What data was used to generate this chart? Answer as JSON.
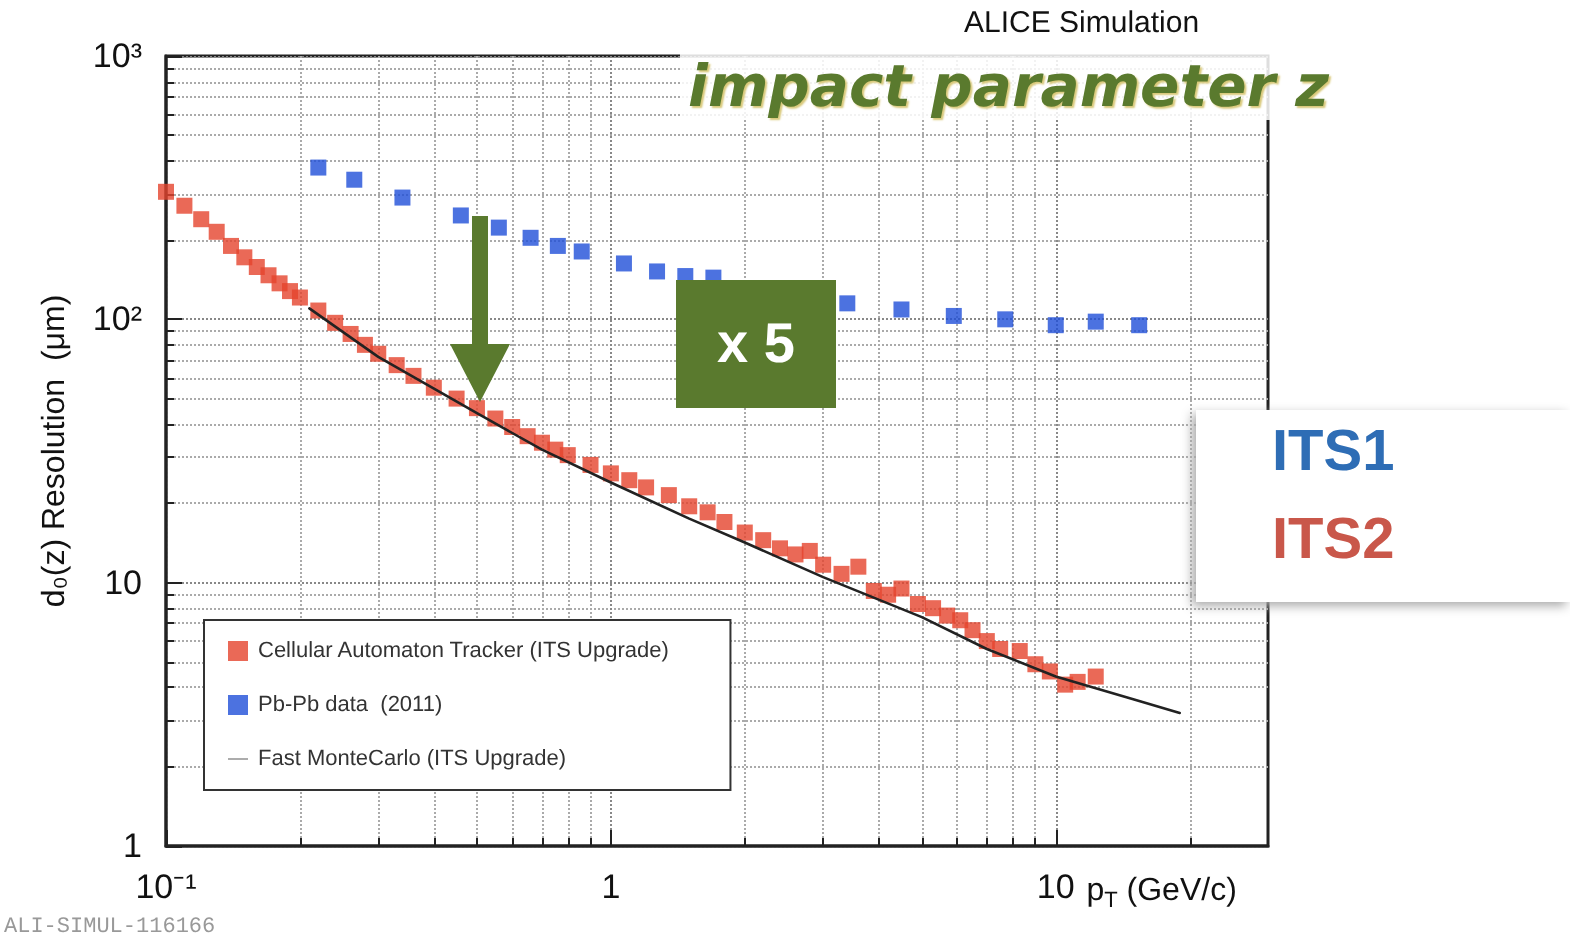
{
  "chart_data": {
    "type": "scatter",
    "title": "impact parameter z",
    "xlabel": "p$_{T}$ (GeV/c)",
    "ylabel": "d₀(z) Resolution  (μm)",
    "annotations": [
      "ALICE Simulation",
      "x 5",
      "ITS1",
      "ITS2",
      "ALI-SIMUL-116166"
    ],
    "log": "xy",
    "grid": true,
    "legend": "bottom left",
    "marker": "square",
    "xlim": [
      0.1,
      30
    ],
    "xticks": [
      {
        "value": 0.1,
        "label": "10⁻¹"
      },
      1,
      10
    ],
    "ylim": [
      1,
      1000
    ],
    "yticks": [
      1,
      10,
      {
        "value": 100,
        "label": "10²"
      },
      {
        "value": 1000,
        "label": "10³"
      }
    ],
    "series": [
      {
        "name": "Cellular Automaton Tracker (ITS Upgrade)",
        "color": "#e5432d",
        "x": [
          0.1,
          0.11,
          0.12,
          0.13,
          0.14,
          0.15,
          0.16,
          0.17,
          0.18,
          0.19,
          0.2,
          0.22,
          0.24,
          0.26,
          0.28,
          0.3,
          0.33,
          0.36,
          0.4,
          0.45,
          0.5,
          0.55,
          0.6,
          0.65,
          0.7,
          0.75,
          0.8,
          0.9,
          1.0,
          1.1,
          1.2,
          1.35,
          1.5,
          1.65,
          1.8,
          2.0,
          2.2,
          2.4,
          2.6,
          2.8,
          3.0,
          3.3,
          3.6,
          3.9,
          4.2,
          4.5,
          4.9,
          5.3,
          5.7,
          6.1,
          6.5,
          7.0,
          7.5,
          8.3,
          9.0,
          9.7,
          10.5,
          11.2,
          12.3
        ],
        "values": [
          305,
          270,
          240,
          215,
          190,
          172,
          158,
          147,
          137,
          128,
          121,
          108,
          97,
          88,
          80,
          74,
          67,
          61,
          55,
          50,
          46,
          42,
          39,
          36,
          34,
          32,
          30.5,
          28,
          26,
          24.5,
          23,
          21.5,
          19.5,
          18.5,
          17,
          15.5,
          14.5,
          13.5,
          12.8,
          13.2,
          11.7,
          10.8,
          11.5,
          9.3,
          9.0,
          9.5,
          8.3,
          8.0,
          7.5,
          7.2,
          6.6,
          6.0,
          5.6,
          5.5,
          4.9,
          4.6,
          4.1,
          4.2,
          4.4
        ]
      },
      {
        "name": "Pb-Pb data  (2011)",
        "color": "#1f4fd8",
        "x": [
          0.22,
          0.265,
          0.34,
          0.46,
          0.56,
          0.66,
          0.76,
          0.86,
          1.07,
          1.27,
          1.47,
          1.7,
          3.4,
          4.5,
          5.9,
          7.7,
          10,
          12.3,
          15.4
        ],
        "values": [
          377,
          339,
          290,
          248,
          223,
          204,
          190,
          181,
          163,
          152,
          146,
          144,
          115,
          109,
          103,
          100,
          95,
          98,
          95
        ]
      },
      {
        "name": "Fast MonteCarlo (ITS Upgrade)",
        "type": "line",
        "marker": "none",
        "color": "#222222",
        "x": [
          0.21,
          0.3,
          0.5,
          0.7,
          1,
          1.5,
          2,
          3,
          5,
          7,
          10,
          15,
          19
        ],
        "values": [
          110,
          72,
          44,
          32,
          24,
          17.5,
          14.2,
          10.5,
          7.4,
          5.6,
          4.4,
          3.6,
          3.2
        ]
      }
    ]
  }
}
